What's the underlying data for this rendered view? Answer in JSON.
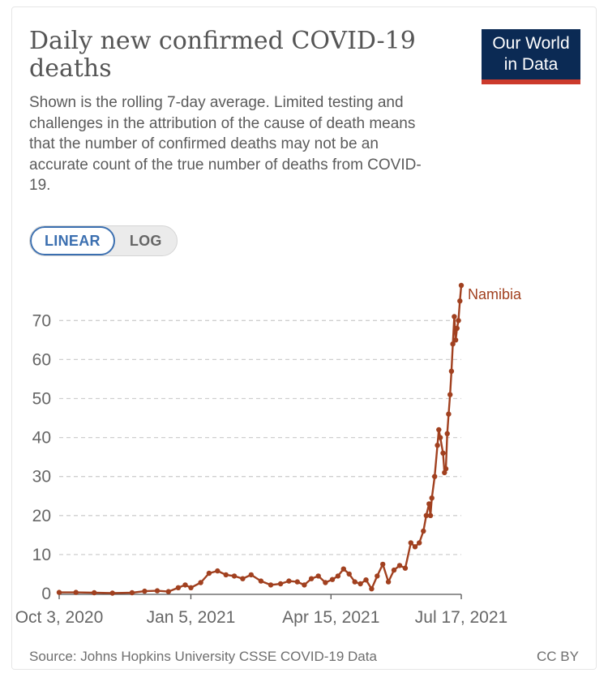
{
  "header": {
    "title": "Daily new confirmed COVID-19 deaths",
    "subtitle": "Shown is the rolling 7-day average. Limited testing and challenges in the attribution of the cause of death means that the number of confirmed deaths may not be an accurate count of the true number of deaths from COVID-19."
  },
  "logo": {
    "line1": "Our World",
    "line2": "in Data"
  },
  "scale_toggle": {
    "linear_label": "LINEAR",
    "log_label": "LOG",
    "selected": "LINEAR"
  },
  "footer": {
    "source": "Source: Johns Hopkins University CSSE COVID-19 Data",
    "license": "CC BY"
  },
  "colors": {
    "series": "#a1401f",
    "grid": "#cfcfcf",
    "axis": "#555555",
    "logo_bg": "#0b2a54",
    "logo_accent": "#cc3a2c",
    "toggle_accent": "#3b6fb0"
  },
  "chart_data": {
    "type": "line",
    "xlabel": "",
    "ylabel": "",
    "x_range": [
      "2020-10-03",
      "2021-07-17"
    ],
    "ylim": [
      0,
      79
    ],
    "yticks": [
      0,
      10,
      20,
      30,
      40,
      50,
      60,
      70
    ],
    "xticks": [
      {
        "date": "2020-10-03",
        "label": "Oct 3, 2020"
      },
      {
        "date": "2021-01-05",
        "label": "Jan 5, 2021"
      },
      {
        "date": "2021-04-15",
        "label": "Apr 15, 2021"
      },
      {
        "date": "2021-07-17",
        "label": "Jul 17, 2021"
      }
    ],
    "grid": true,
    "legend": "inline-end",
    "series": [
      {
        "name": "Namibia",
        "points": [
          [
            "2020-10-03",
            0.3
          ],
          [
            "2020-10-15",
            0.3
          ],
          [
            "2020-10-28",
            0.2
          ],
          [
            "2020-11-10",
            0.1
          ],
          [
            "2020-11-24",
            0.2
          ],
          [
            "2020-12-03",
            0.6
          ],
          [
            "2020-12-12",
            0.7
          ],
          [
            "2020-12-20",
            0.5
          ],
          [
            "2020-12-27",
            1.5
          ],
          [
            "2021-01-01",
            2.2
          ],
          [
            "2021-01-05",
            1.5
          ],
          [
            "2021-01-12",
            2.8
          ],
          [
            "2021-01-18",
            5.2
          ],
          [
            "2021-01-24",
            5.8
          ],
          [
            "2021-01-30",
            4.8
          ],
          [
            "2021-02-05",
            4.5
          ],
          [
            "2021-02-11",
            3.8
          ],
          [
            "2021-02-17",
            4.8
          ],
          [
            "2021-02-24",
            3.2
          ],
          [
            "2021-03-03",
            2.2
          ],
          [
            "2021-03-10",
            2.5
          ],
          [
            "2021-03-16",
            3.2
          ],
          [
            "2021-03-22",
            3.0
          ],
          [
            "2021-03-27",
            2.2
          ],
          [
            "2021-04-01",
            3.8
          ],
          [
            "2021-04-06",
            4.5
          ],
          [
            "2021-04-11",
            2.8
          ],
          [
            "2021-04-16",
            3.6
          ],
          [
            "2021-04-20",
            4.5
          ],
          [
            "2021-04-24",
            6.3
          ],
          [
            "2021-04-28",
            5.0
          ],
          [
            "2021-05-02",
            3.0
          ],
          [
            "2021-05-06",
            2.5
          ],
          [
            "2021-05-10",
            3.5
          ],
          [
            "2021-05-14",
            1.2
          ],
          [
            "2021-05-18",
            4.5
          ],
          [
            "2021-05-22",
            7.5
          ],
          [
            "2021-05-26",
            3.0
          ],
          [
            "2021-05-30",
            6.0
          ],
          [
            "2021-06-03",
            7.2
          ],
          [
            "2021-06-07",
            6.5
          ],
          [
            "2021-06-11",
            13.0
          ],
          [
            "2021-06-14",
            12.0
          ],
          [
            "2021-06-17",
            13.0
          ],
          [
            "2021-06-20",
            16.0
          ],
          [
            "2021-06-22",
            20.0
          ],
          [
            "2021-06-24",
            23.0
          ],
          [
            "2021-06-25",
            20.0
          ],
          [
            "2021-06-26",
            24.5
          ],
          [
            "2021-06-28",
            30.0
          ],
          [
            "2021-06-30",
            38.0
          ],
          [
            "2021-07-01",
            42.0
          ],
          [
            "2021-07-02",
            40.0
          ],
          [
            "2021-07-04",
            36.0
          ],
          [
            "2021-07-05",
            31.0
          ],
          [
            "2021-07-06",
            32.0
          ],
          [
            "2021-07-07",
            41.0
          ],
          [
            "2021-07-08",
            46.0
          ],
          [
            "2021-07-09",
            51.0
          ],
          [
            "2021-07-10",
            57.0
          ],
          [
            "2021-07-11",
            64.0
          ],
          [
            "2021-07-12",
            71.0
          ],
          [
            "2021-07-13",
            65.0
          ],
          [
            "2021-07-14",
            68.0
          ],
          [
            "2021-07-15",
            70.0
          ],
          [
            "2021-07-16",
            75.0
          ],
          [
            "2021-07-17",
            79.0
          ]
        ]
      }
    ]
  }
}
